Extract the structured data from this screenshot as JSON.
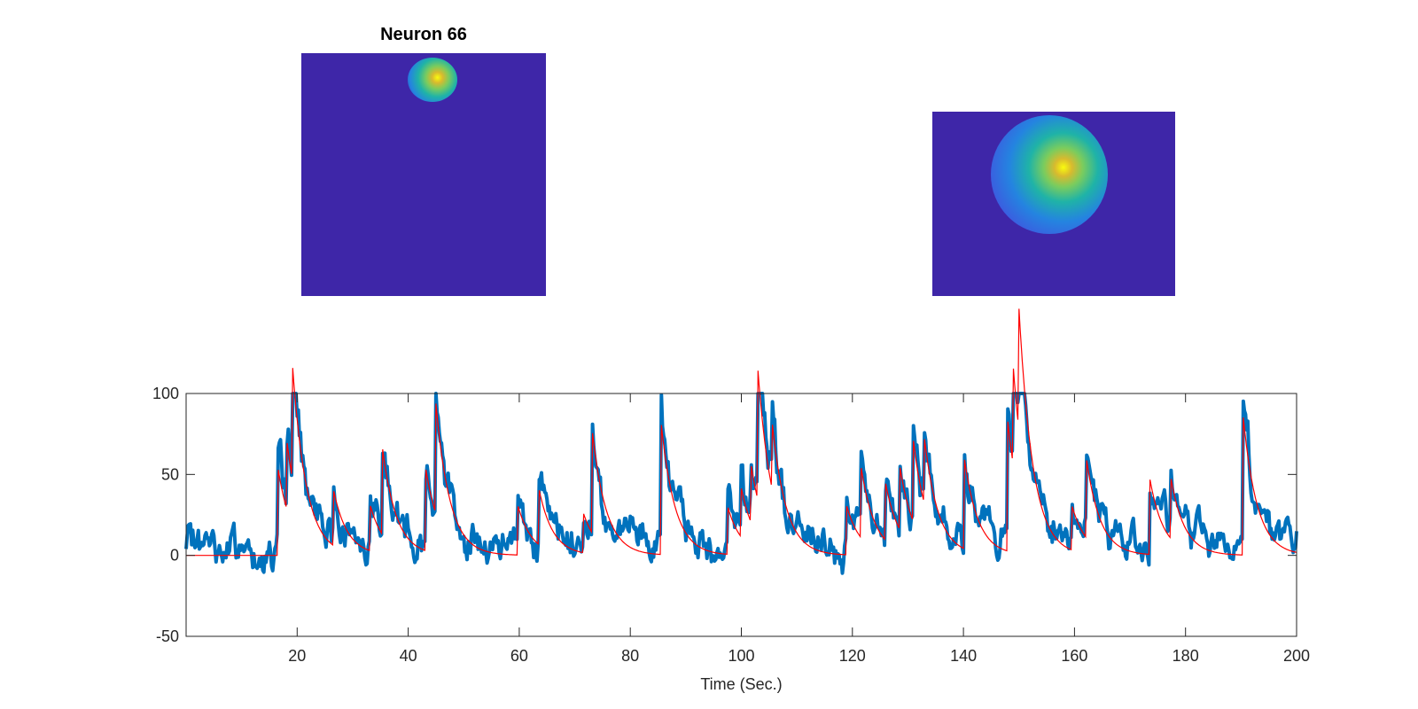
{
  "panel_title": "Neuron 66",
  "colors": {
    "image_background": "#3e26a8",
    "raw_trace": "#0072bd",
    "fitted_trace": "#ff0000",
    "axis": "#262626"
  },
  "chart_data": {
    "type": "line",
    "title": "",
    "xlabel": "Time (Sec.)",
    "ylabel": "",
    "xlim": [
      0,
      200
    ],
    "ylim": [
      -50,
      100
    ],
    "xticks": [
      20,
      40,
      60,
      80,
      100,
      120,
      140,
      160,
      180,
      200
    ],
    "yticks": [
      -50,
      0,
      50,
      100
    ],
    "grid": false,
    "events": [
      {
        "t": 16.5,
        "a": 55
      },
      {
        "t": 18.0,
        "a": 45
      },
      {
        "t": 19.0,
        "a": 75
      },
      {
        "t": 26.5,
        "a": 35
      },
      {
        "t": 33.0,
        "a": 30
      },
      {
        "t": 35.3,
        "a": 55
      },
      {
        "t": 43.2,
        "a": 50
      },
      {
        "t": 45.0,
        "a": 68
      },
      {
        "t": 59.8,
        "a": 30
      },
      {
        "t": 63.5,
        "a": 35
      },
      {
        "t": 71.5,
        "a": 25
      },
      {
        "t": 73.2,
        "a": 62
      },
      {
        "t": 85.6,
        "a": 80
      },
      {
        "t": 97.5,
        "a": 30
      },
      {
        "t": 100.0,
        "a": 30
      },
      {
        "t": 101.8,
        "a": 35
      },
      {
        "t": 103.0,
        "a": 80
      },
      {
        "t": 105.5,
        "a": 42
      },
      {
        "t": 119.0,
        "a": 30
      },
      {
        "t": 121.5,
        "a": 45
      },
      {
        "t": 126.0,
        "a": 35
      },
      {
        "t": 128.5,
        "a": 40
      },
      {
        "t": 131.0,
        "a": 50
      },
      {
        "t": 133.0,
        "a": 40
      },
      {
        "t": 140.2,
        "a": 55
      },
      {
        "t": 148.0,
        "a": 80
      },
      {
        "t": 149.0,
        "a": 60
      },
      {
        "t": 150.0,
        "a": 75
      },
      {
        "t": 159.5,
        "a": 28
      },
      {
        "t": 162.0,
        "a": 52
      },
      {
        "t": 173.5,
        "a": 48
      },
      {
        "t": 177.2,
        "a": 40
      },
      {
        "t": 190.2,
        "a": 92
      }
    ],
    "series": [
      {
        "role": "raw",
        "color": "#0072bd",
        "noise_amp": 9
      },
      {
        "role": "fitted",
        "color": "#ff0000",
        "decay_s": 2.5
      }
    ]
  }
}
